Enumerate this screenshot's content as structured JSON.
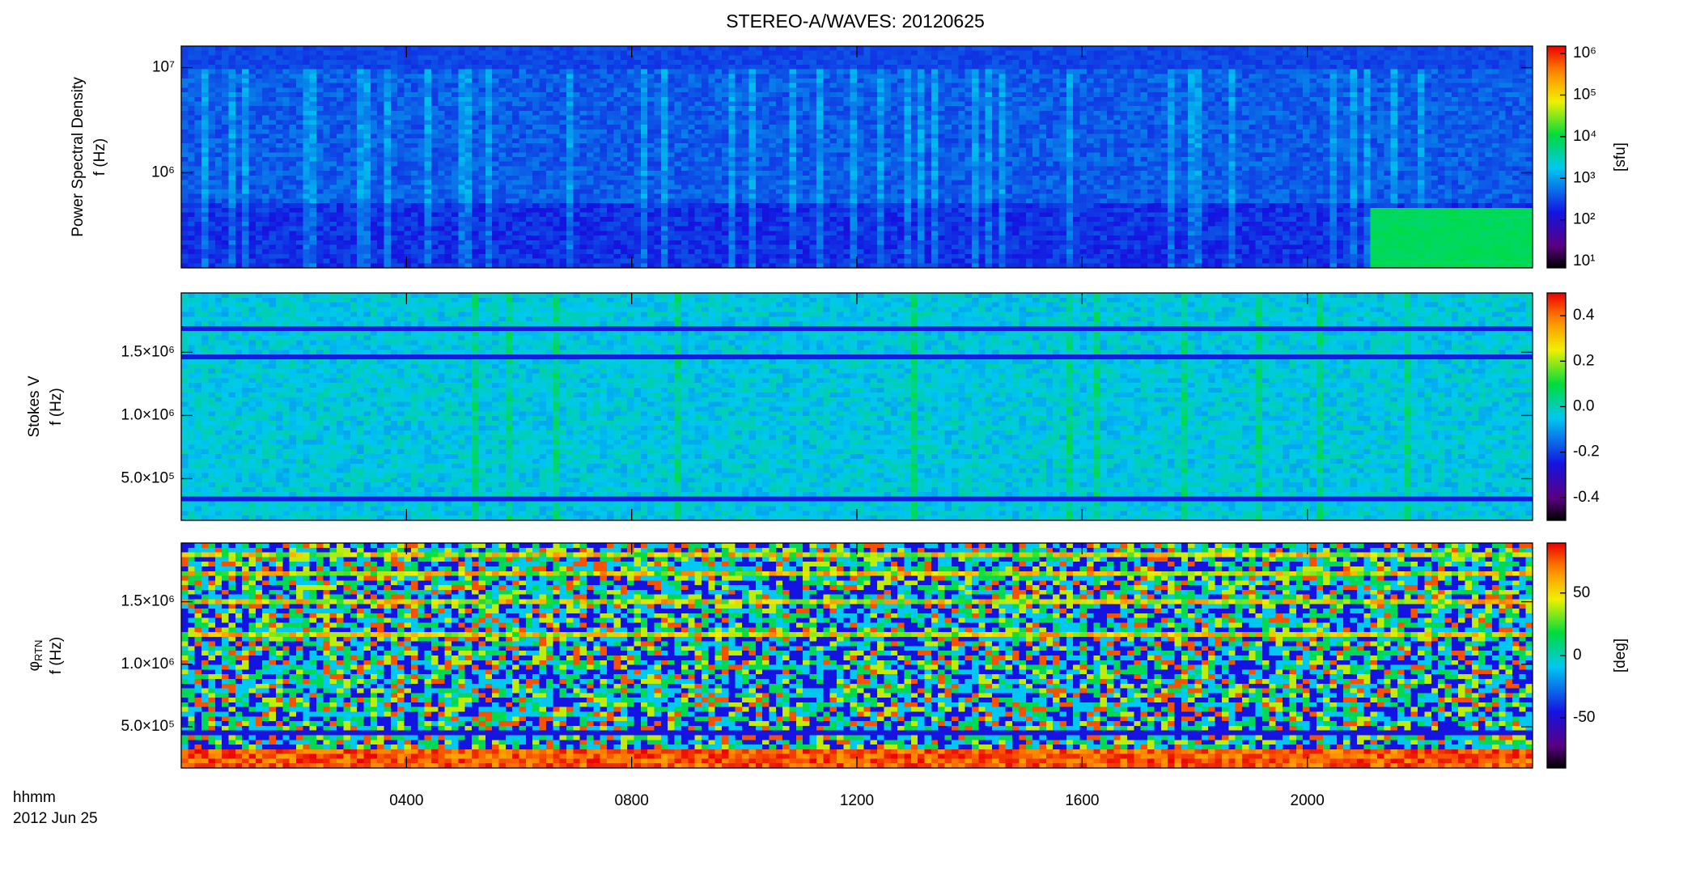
{
  "title": "STEREO-A/WAVES: 20120625",
  "xaxis": {
    "xlim": [
      0,
      24
    ],
    "xticks": [
      {
        "value": 4,
        "label": "0400"
      },
      {
        "value": 8,
        "label": "0800"
      },
      {
        "value": 12,
        "label": "1200"
      },
      {
        "value": 16,
        "label": "1600"
      },
      {
        "value": 20,
        "label": "2000"
      }
    ],
    "label": [
      "hhmm",
      "2012 Jun 25"
    ]
  },
  "chart_data": [
    {
      "type": "spectrogram",
      "ylabel": [
        "Power Spectral Density",
        "f (Hz)"
      ],
      "ylog": true,
      "ylim": [
        125000,
        16000000
      ],
      "yticks": [
        {
          "value": 1000000,
          "label": "10⁶"
        },
        {
          "value": 10000000,
          "label": "10⁷"
        }
      ],
      "colorbar": {
        "zlog": true,
        "zlim": [
          7,
          1500000
        ],
        "zticks": [
          {
            "value": 10,
            "label": "10¹"
          },
          {
            "value": 100,
            "label": "10²"
          },
          {
            "value": 1000,
            "label": "10³"
          },
          {
            "value": 10000,
            "label": "10⁴"
          },
          {
            "value": 100000,
            "label": "10⁵"
          },
          {
            "value": 1000000,
            "label": "10⁶"
          }
        ],
        "label": "[sfu]"
      }
    },
    {
      "type": "spectrogram",
      "ylabel": [
        "Stokes V",
        "f (Hz)"
      ],
      "ylog": false,
      "ylim": [
        170000,
        1970000
      ],
      "yticks": [
        {
          "value": 500000,
          "label": "5.0×10⁵"
        },
        {
          "value": 1000000,
          "label": "1.0×10⁶"
        },
        {
          "value": 1500000,
          "label": "1.5×10⁶"
        }
      ],
      "colorbar": {
        "zlog": false,
        "zlim": [
          -0.5,
          0.5
        ],
        "zticks": [
          -0.4,
          -0.2,
          {
            "value": 0,
            "label": "0.0"
          },
          0.2,
          0.4
        ]
      }
    },
    {
      "type": "spectrogram",
      "ylabel": [
        "φ",
        "f (Hz)"
      ],
      "ylabel_subscript": "RTN",
      "ylog": false,
      "ylim": [
        170000,
        1970000
      ],
      "yticks": [
        {
          "value": 500000,
          "label": "5.0×10⁵"
        },
        {
          "value": 1000000,
          "label": "1.0×10⁶"
        },
        {
          "value": 1500000,
          "label": "1.5×10⁶"
        }
      ],
      "colorbar": {
        "zlog": false,
        "zlim": [
          -90,
          90
        ],
        "zticks": [
          -50,
          0,
          50
        ],
        "label": "[deg]"
      }
    }
  ]
}
